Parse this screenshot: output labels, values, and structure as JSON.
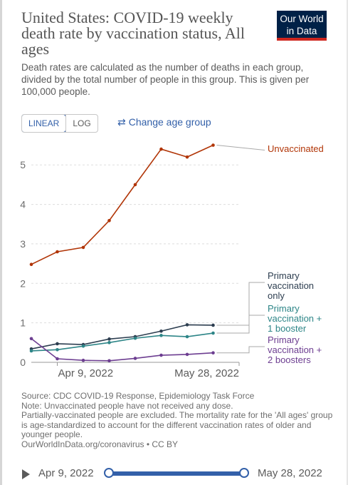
{
  "header": {
    "title": "United States: COVID-19 weekly death rate by vaccination status, All ages",
    "logo_line1": "Our World",
    "logo_line2": "in Data",
    "subtitle": "Death rates are calculated as the number of deaths in each group, divided by the total number of people in this group. This is given per 100,000 people."
  },
  "controls": {
    "linear_label": "LINEAR",
    "log_label": "LOG",
    "active_scale": "linear",
    "change_age_label": "Change age group",
    "change_age_icon": "swap-arrows-icon"
  },
  "chart_data": {
    "type": "line",
    "ylim": [
      0,
      5.6
    ],
    "yticks": [
      0,
      1,
      2,
      3,
      4,
      5
    ],
    "grid": true,
    "x_tick_labels": [
      "Apr 9, 2022",
      "May 28, 2022"
    ],
    "x": [
      "2022-04-02",
      "2022-04-09",
      "2022-04-16",
      "2022-04-23",
      "2022-04-30",
      "2022-05-07",
      "2022-05-14",
      "2022-05-21",
      "2022-05-28"
    ],
    "series": [
      {
        "name": "Unvaccinated",
        "color": "#b13507",
        "values": [
          2.48,
          2.8,
          2.91,
          3.59,
          4.5,
          5.4,
          5.2,
          5.5,
          null
        ]
      },
      {
        "name": "Primary vaccination only",
        "color": "#2d3e50",
        "values": [
          0.34,
          0.47,
          0.45,
          0.59,
          0.65,
          0.79,
          0.95,
          0.94,
          null
        ]
      },
      {
        "name": "Primary vaccination + 1 booster",
        "color": "#2d8587",
        "values": [
          0.29,
          0.32,
          0.41,
          0.5,
          0.61,
          0.68,
          0.65,
          0.74,
          null
        ]
      },
      {
        "name": "Primary vaccination + 2 boosters",
        "color": "#6d3e91",
        "values": [
          0.6,
          0.09,
          0.05,
          0.04,
          0.1,
          0.18,
          0.2,
          0.24,
          null
        ]
      }
    ],
    "legend": [
      {
        "lines": [
          "Unvaccinated"
        ]
      },
      {
        "lines": [
          "Primary",
          "vaccination",
          "only"
        ]
      },
      {
        "lines": [
          "Primary",
          "vaccination +",
          "1 booster"
        ]
      },
      {
        "lines": [
          "Primary",
          "vaccination +",
          "2 boosters"
        ]
      }
    ],
    "legend_placement": "right"
  },
  "footer": {
    "source_line": "Source: CDC COVID-19 Response, Epidemiology Task Force",
    "note_line1": "Note: Unvaccinated people have not received any dose.",
    "note_line2": "Partially-vaccinated people are excluded. The mortality rate for the 'All ages' group is age-standardized to account for the different vaccination rates of older and younger people.",
    "url_line": "OurWorldInData.org/coronavirus • CC BY"
  },
  "timeline": {
    "start_label": "Apr 9, 2022",
    "end_label": "May 28, 2022",
    "play_icon": "play-icon"
  }
}
